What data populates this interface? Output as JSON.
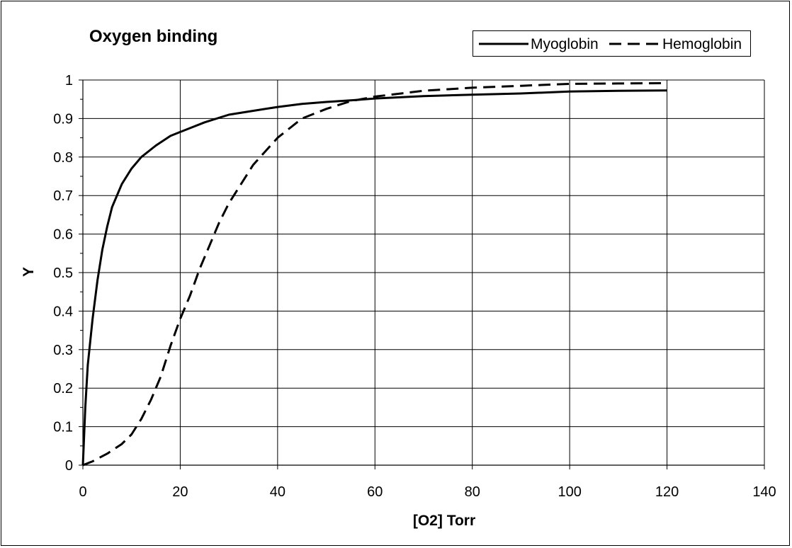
{
  "chart_data": {
    "type": "line",
    "title": "Oxygen binding",
    "xlabel": "[O2] Torr",
    "ylabel": "Y",
    "xlim": [
      0,
      140
    ],
    "ylim": [
      0,
      1
    ],
    "x_ticks": [
      0,
      20,
      40,
      60,
      80,
      100,
      120,
      140
    ],
    "y_ticks": [
      "0",
      "0.1",
      "0.2",
      "0.3",
      "0.4",
      "0.5",
      "0.6",
      "0.7",
      "0.8",
      "0.9",
      "1"
    ],
    "grid": true,
    "legend_position": "top-right",
    "series": [
      {
        "name": "Myoglobin",
        "style": "solid",
        "color": "#000000",
        "x": [
          0,
          0.5,
          1,
          2,
          3,
          4,
          5,
          6,
          8,
          10,
          12,
          15,
          18,
          20,
          25,
          30,
          35,
          40,
          45,
          50,
          55,
          60,
          70,
          80,
          90,
          100,
          110,
          120
        ],
        "y": [
          0,
          0.15,
          0.26,
          0.38,
          0.48,
          0.56,
          0.62,
          0.67,
          0.73,
          0.77,
          0.8,
          0.83,
          0.855,
          0.865,
          0.89,
          0.91,
          0.92,
          0.93,
          0.938,
          0.943,
          0.947,
          0.952,
          0.958,
          0.962,
          0.965,
          0.97,
          0.972,
          0.973
        ]
      },
      {
        "name": "Hemoglobin",
        "style": "dashed",
        "color": "#000000",
        "x": [
          0,
          2,
          5,
          8,
          10,
          12,
          14,
          16,
          18,
          20,
          22,
          24,
          26,
          28,
          30,
          35,
          40,
          45,
          50,
          55,
          60,
          70,
          80,
          90,
          100,
          110,
          120
        ],
        "y": [
          0,
          0.01,
          0.03,
          0.055,
          0.08,
          0.12,
          0.17,
          0.23,
          0.31,
          0.38,
          0.44,
          0.51,
          0.57,
          0.63,
          0.68,
          0.78,
          0.85,
          0.9,
          0.925,
          0.945,
          0.957,
          0.972,
          0.98,
          0.985,
          0.99,
          0.991,
          0.992
        ]
      }
    ]
  }
}
